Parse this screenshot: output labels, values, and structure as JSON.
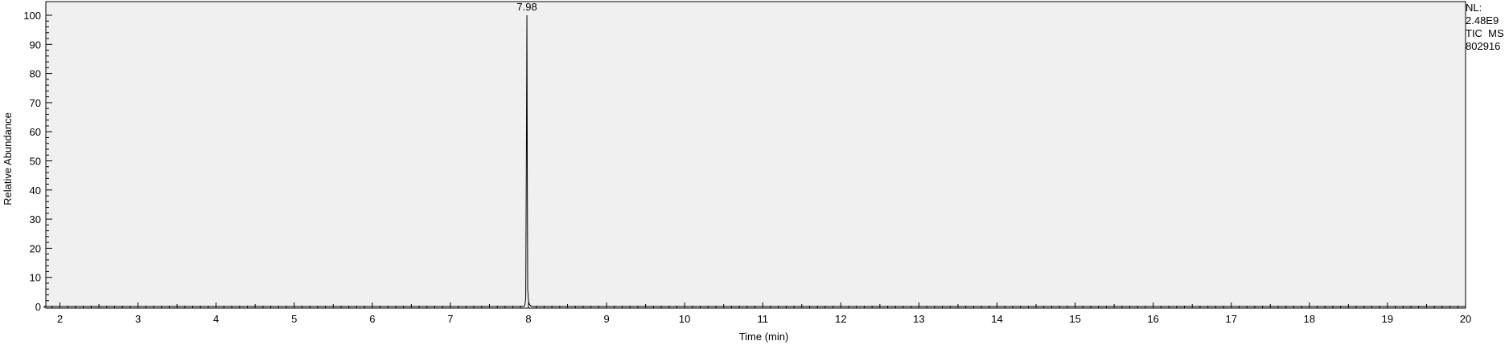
{
  "info": {
    "nl_label": "NL:",
    "nl_value": "2.48E9",
    "scan_type": "TIC  MS",
    "sample_id": "802916"
  },
  "colors": {
    "plot_background": "#f0f0f0",
    "trace": "#000000"
  },
  "chart_data": {
    "type": "line",
    "title": "",
    "xlabel": "Time (min)",
    "ylabel": "Relative Abundance",
    "xlim": [
      1.8,
      20
    ],
    "ylim": [
      0,
      100
    ],
    "x_ticks": [
      2,
      3,
      4,
      5,
      6,
      7,
      8,
      9,
      10,
      11,
      12,
      13,
      14,
      15,
      16,
      17,
      18,
      19,
      20
    ],
    "y_ticks": [
      0,
      10,
      20,
      30,
      40,
      50,
      60,
      70,
      80,
      90,
      100
    ],
    "grid": false,
    "series": [
      {
        "x": [
          1.8,
          7.94,
          7.955,
          7.965,
          7.975,
          7.98,
          7.985,
          7.99,
          8.0,
          8.01,
          8.03,
          8.05,
          20
        ],
        "y": [
          0,
          0,
          0.5,
          3,
          64,
          100,
          45,
          6,
          2,
          0.8,
          0.2,
          0,
          0
        ]
      }
    ],
    "annotations": [
      {
        "x": 7.98,
        "y": 100,
        "text": "7.98"
      }
    ]
  }
}
